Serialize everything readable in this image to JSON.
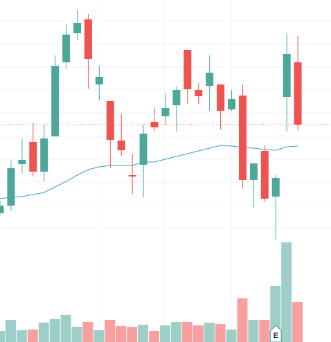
{
  "chart_data": {
    "type": "candlestick",
    "categories": [
      null,
      null,
      null,
      null,
      null,
      null,
      null,
      null,
      null,
      null,
      null,
      null,
      null,
      null,
      null,
      null,
      null,
      null,
      null,
      null,
      null,
      null,
      null,
      null,
      null,
      null,
      null,
      null
    ],
    "open": [
      186,
      197,
      257,
      289,
      246,
      297,
      404,
      446,
      466,
      372,
      348,
      291,
      241,
      256,
      318,
      326,
      342,
      422,
      364,
      370,
      372,
      336,
      356,
      234,
      276,
      210,
      354,
      404
    ],
    "high": [
      204,
      262,
      294,
      316,
      314,
      414,
      459,
      480,
      474,
      399,
      348,
      329,
      272,
      314,
      339,
      359,
      369,
      422,
      374,
      414,
      372,
      364,
      372,
      258,
      284,
      242,
      446,
      442
    ],
    "low": [
      184,
      189,
      244,
      239,
      232,
      297,
      394,
      436,
      366,
      349,
      251,
      269,
      214,
      209,
      304,
      314,
      304,
      344,
      344,
      334,
      307,
      334,
      222,
      194,
      202,
      148,
      304,
      306
    ],
    "close": [
      197,
      251,
      263,
      246,
      294,
      399,
      444,
      461,
      409,
      383,
      292,
      277,
      239,
      301,
      310,
      338,
      364,
      365,
      355,
      389,
      334,
      351,
      234,
      258,
      207,
      237,
      416,
      314
    ],
    "volume": [
      16,
      32,
      17,
      18,
      28,
      33,
      39,
      22,
      29,
      17,
      32,
      23,
      22,
      25,
      16,
      24,
      29,
      29,
      24,
      28,
      26,
      18,
      63,
      32,
      32,
      81,
      144,
      58
    ],
    "ma": [
      207,
      209,
      210,
      213,
      216,
      224,
      232,
      241,
      249,
      253,
      255,
      255,
      255,
      260,
      260,
      264,
      268,
      272,
      276,
      280,
      284,
      283,
      281,
      280,
      278,
      277,
      282,
      283
    ],
    "up_color": "#4da79a",
    "down_color": "#ef5350",
    "ma_color": "#3a9ad9",
    "ylim": [
      0,
      494
    ],
    "yticks": [
      464,
      431,
      397,
      364,
      331,
      297,
      264,
      231,
      197,
      164
    ],
    "grid": true,
    "annotation": {
      "index": 25,
      "label": "E"
    }
  }
}
